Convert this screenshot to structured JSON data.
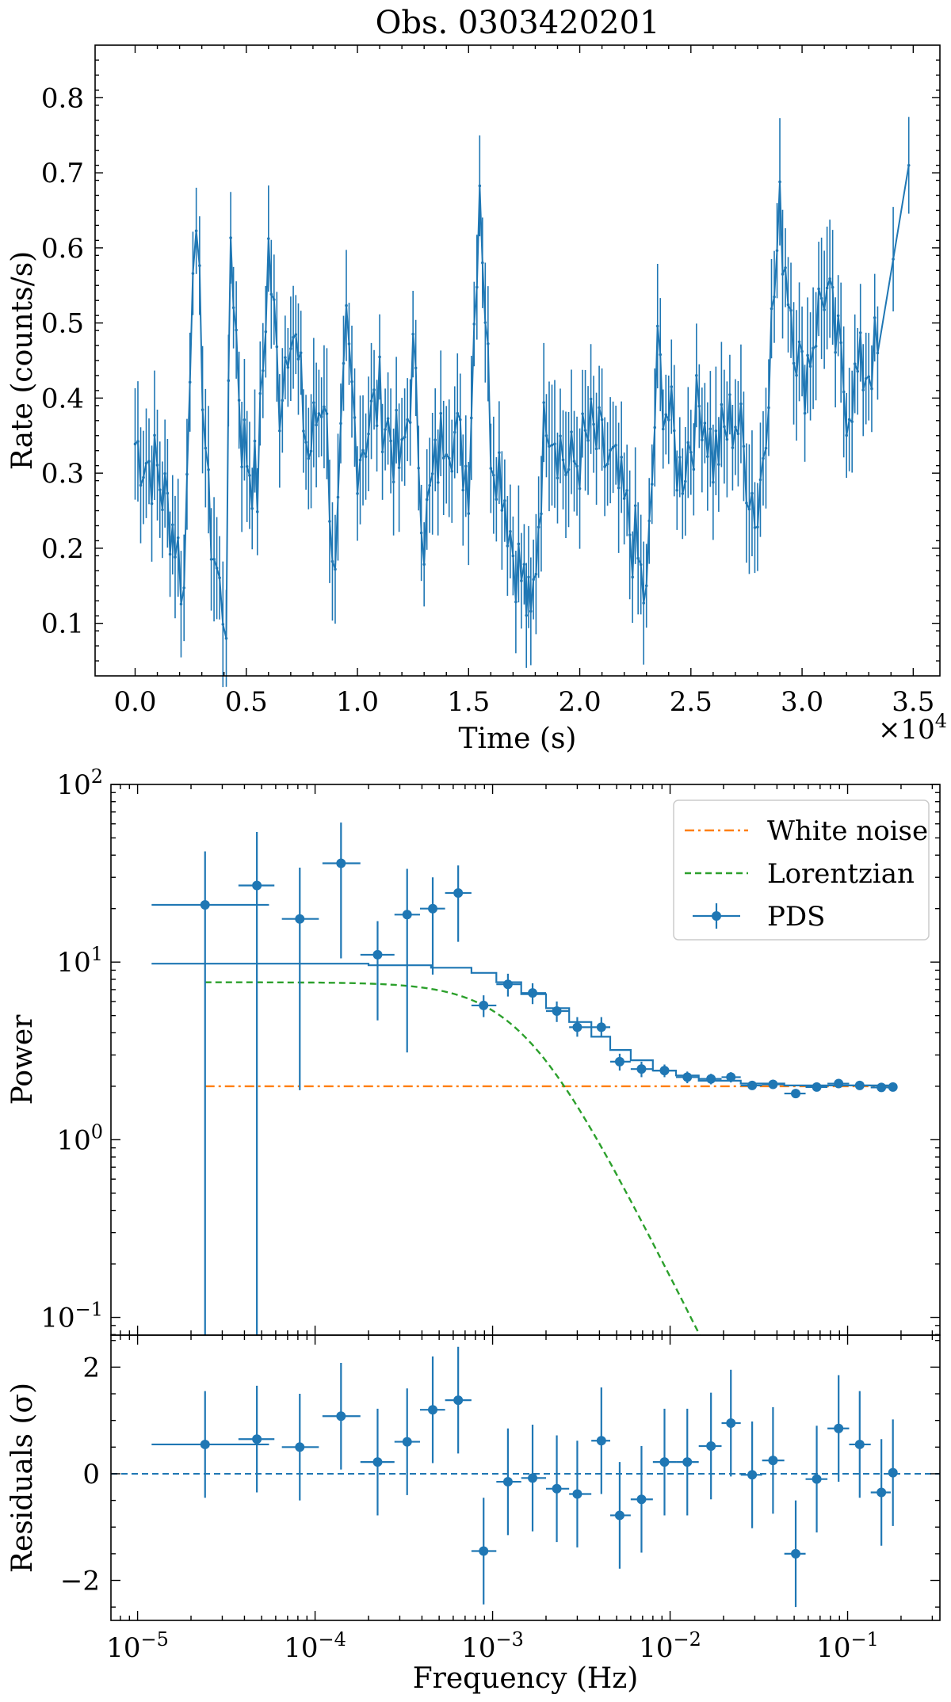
{
  "figure": {
    "colors": {
      "series": "#1f77b4",
      "white_noise": "#ff7f0e",
      "lorentzian": "#2ca02c",
      "axis": "#000000",
      "zero_line": "#1f77b4"
    }
  },
  "chart_data": [
    {
      "id": "lightcurve",
      "type": "line",
      "title": "Obs. 0303420201",
      "xlabel": "Time (s)",
      "ylabel": "Rate (counts/s)",
      "x_multiplier_label": "×10",
      "x_multiplier_exp": "4",
      "xlim": [
        -0.18,
        3.62
      ],
      "ylim": [
        0.03,
        0.87
      ],
      "xticks": [
        0.0,
        0.5,
        1.0,
        1.5,
        2.0,
        2.5,
        3.0,
        3.5
      ],
      "xtick_labels": [
        "0.0",
        "0.5",
        "1.0",
        "1.5",
        "2.0",
        "2.5",
        "3.0",
        "3.5"
      ],
      "yticks": [
        0.1,
        0.2,
        0.3,
        0.4,
        0.5,
        0.6,
        0.7,
        0.8
      ],
      "ytick_labels": [
        "0.1",
        "0.2",
        "0.3",
        "0.4",
        "0.5",
        "0.6",
        "0.7",
        "0.8"
      ],
      "x_unit_note": "time in units of 1e4 s",
      "key_points": [
        {
          "t": 0.0,
          "rate": 0.34
        },
        {
          "t": 0.1,
          "rate": 0.3
        },
        {
          "t": 0.18,
          "rate": 0.22
        },
        {
          "t": 0.22,
          "rate": 0.14
        },
        {
          "t": 0.26,
          "rate": 0.62
        },
        {
          "t": 0.29,
          "rate": 0.52
        },
        {
          "t": 0.33,
          "rate": 0.25
        },
        {
          "t": 0.38,
          "rate": 0.14
        },
        {
          "t": 0.41,
          "rate": 0.11
        },
        {
          "t": 0.43,
          "rate": 0.62
        },
        {
          "t": 0.48,
          "rate": 0.35
        },
        {
          "t": 0.55,
          "rate": 0.28
        },
        {
          "t": 0.6,
          "rate": 0.6
        },
        {
          "t": 0.65,
          "rate": 0.4
        },
        {
          "t": 0.7,
          "rate": 0.52
        },
        {
          "t": 0.78,
          "rate": 0.32
        },
        {
          "t": 0.85,
          "rate": 0.42
        },
        {
          "t": 0.9,
          "rate": 0.14
        },
        {
          "t": 0.95,
          "rate": 0.48
        },
        {
          "t": 1.0,
          "rate": 0.33
        },
        {
          "t": 1.1,
          "rate": 0.4
        },
        {
          "t": 1.2,
          "rate": 0.3
        },
        {
          "t": 1.25,
          "rate": 0.45
        },
        {
          "t": 1.3,
          "rate": 0.22
        },
        {
          "t": 1.4,
          "rate": 0.38
        },
        {
          "t": 1.5,
          "rate": 0.3
        },
        {
          "t": 1.55,
          "rate": 0.7
        },
        {
          "t": 1.6,
          "rate": 0.35
        },
        {
          "t": 1.65,
          "rate": 0.3
        },
        {
          "t": 1.7,
          "rate": 0.2
        },
        {
          "t": 1.75,
          "rate": 0.15
        },
        {
          "t": 1.78,
          "rate": 0.09
        },
        {
          "t": 1.85,
          "rate": 0.4
        },
        {
          "t": 1.95,
          "rate": 0.3
        },
        {
          "t": 2.05,
          "rate": 0.35
        },
        {
          "t": 2.15,
          "rate": 0.3
        },
        {
          "t": 2.25,
          "rate": 0.2
        },
        {
          "t": 2.3,
          "rate": 0.12
        },
        {
          "t": 2.35,
          "rate": 0.45
        },
        {
          "t": 2.45,
          "rate": 0.3
        },
        {
          "t": 2.55,
          "rate": 0.4
        },
        {
          "t": 2.6,
          "rate": 0.32
        },
        {
          "t": 2.7,
          "rate": 0.38
        },
        {
          "t": 2.8,
          "rate": 0.24
        },
        {
          "t": 2.9,
          "rate": 0.64
        },
        {
          "t": 3.0,
          "rate": 0.42
        },
        {
          "t": 3.1,
          "rate": 0.55
        },
        {
          "t": 3.2,
          "rate": 0.4
        },
        {
          "t": 3.3,
          "rate": 0.45
        },
        {
          "t": 3.34,
          "rate": 0.46
        },
        {
          "t": 3.48,
          "rate": 0.71
        }
      ],
      "error_bar_half_width": 0.07
    },
    {
      "id": "pds",
      "type": "scatter",
      "xlabel": "",
      "ylabel": "Power",
      "xscale": "log",
      "yscale": "log",
      "xlim_log10": [
        -5.15,
        -0.48
      ],
      "ylim_log10": [
        -1.1,
        2.0
      ],
      "ytick_labels": [
        {
          "base": "10",
          "exp": "−1",
          "value": -1
        },
        {
          "base": "10",
          "exp": "0",
          "value": 0
        },
        {
          "base": "10",
          "exp": "1",
          "value": 1
        },
        {
          "base": "10",
          "exp": "2",
          "value": 2
        }
      ],
      "legend": {
        "placement": "top-right",
        "entries": [
          {
            "label": "White noise",
            "style": "dashdot",
            "color": "#ff7f0e"
          },
          {
            "label": "Lorentzian",
            "style": "dashed",
            "color": "#2ca02c"
          },
          {
            "label": "PDS",
            "style": "errorbar",
            "color": "#1f77b4"
          }
        ]
      },
      "white_noise_level": 2.0,
      "lorentzian": {
        "amplitude": 7.7,
        "width_hz": 0.0015,
        "x_start_hz": 2.4e-05
      },
      "points": [
        {
          "f": 2.4e-05,
          "f_lo": 1.2e-05,
          "f_hi": 5.5e-05,
          "p": 21.0,
          "p_lo": 0.05,
          "p_hi": 42.0
        },
        {
          "f": 4.7e-05,
          "f_lo": 3.7e-05,
          "f_hi": 5.9e-05,
          "p": 27.0,
          "p_lo": 0.05,
          "p_hi": 54.0
        },
        {
          "f": 8.2e-05,
          "f_lo": 6.5e-05,
          "f_hi": 0.000105,
          "p": 17.5,
          "p_lo": 1.9,
          "p_hi": 34.0
        },
        {
          "f": 0.00014,
          "f_lo": 0.00011,
          "f_hi": 0.00018,
          "p": 36.0,
          "p_lo": 10.5,
          "p_hi": 61.0
        },
        {
          "f": 0.000225,
          "f_lo": 0.00018,
          "f_hi": 0.00028,
          "p": 11.0,
          "p_lo": 4.7,
          "p_hi": 17.0
        },
        {
          "f": 0.00033,
          "f_lo": 0.00028,
          "f_hi": 0.00039,
          "p": 18.5,
          "p_lo": 3.1,
          "p_hi": 33.5
        },
        {
          "f": 0.00046,
          "f_lo": 0.00039,
          "f_hi": 0.00054,
          "p": 20.0,
          "p_lo": 8.5,
          "p_hi": 30.0
        },
        {
          "f": 0.00064,
          "f_lo": 0.00054,
          "f_hi": 0.00076,
          "p": 24.5,
          "p_lo": 13.0,
          "p_hi": 35.0
        },
        {
          "f": 0.00089,
          "f_lo": 0.00076,
          "f_hi": 0.00105,
          "p": 5.7,
          "p_lo": 4.9,
          "p_hi": 6.5
        },
        {
          "f": 0.00122,
          "f_lo": 0.00105,
          "f_hi": 0.00145,
          "p": 7.5,
          "p_lo": 6.4,
          "p_hi": 8.6
        },
        {
          "f": 0.00168,
          "f_lo": 0.00145,
          "f_hi": 0.002,
          "p": 6.7,
          "p_lo": 5.8,
          "p_hi": 7.6
        },
        {
          "f": 0.0023,
          "f_lo": 0.002,
          "f_hi": 0.0027,
          "p": 5.3,
          "p_lo": 4.6,
          "p_hi": 6.0
        },
        {
          "f": 0.003,
          "f_lo": 0.0027,
          "f_hi": 0.0036,
          "p": 4.3,
          "p_lo": 3.8,
          "p_hi": 4.9
        },
        {
          "f": 0.0041,
          "f_lo": 0.0036,
          "f_hi": 0.0046,
          "p": 4.3,
          "p_lo": 3.8,
          "p_hi": 4.9
        },
        {
          "f": 0.0052,
          "f_lo": 0.0046,
          "f_hi": 0.006,
          "p": 2.75,
          "p_lo": 2.45,
          "p_hi": 3.05
        },
        {
          "f": 0.0069,
          "f_lo": 0.006,
          "f_hi": 0.008,
          "p": 2.5,
          "p_lo": 2.25,
          "p_hi": 2.75
        },
        {
          "f": 0.0093,
          "f_lo": 0.008,
          "f_hi": 0.0108,
          "p": 2.45,
          "p_lo": 2.25,
          "p_hi": 2.65
        },
        {
          "f": 0.0125,
          "f_lo": 0.0108,
          "f_hi": 0.0145,
          "p": 2.25,
          "p_lo": 2.08,
          "p_hi": 2.42
        },
        {
          "f": 0.017,
          "f_lo": 0.0145,
          "f_hi": 0.0195,
          "p": 2.2,
          "p_lo": 2.05,
          "p_hi": 2.35
        },
        {
          "f": 0.022,
          "f_lo": 0.0195,
          "f_hi": 0.025,
          "p": 2.25,
          "p_lo": 2.1,
          "p_hi": 2.4
        },
        {
          "f": 0.029,
          "f_lo": 0.025,
          "f_hi": 0.033,
          "p": 2.02,
          "p_lo": 1.92,
          "p_hi": 2.12
        },
        {
          "f": 0.038,
          "f_lo": 0.033,
          "f_hi": 0.044,
          "p": 2.05,
          "p_lo": 1.95,
          "p_hi": 2.15
        },
        {
          "f": 0.051,
          "f_lo": 0.044,
          "f_hi": 0.058,
          "p": 1.82,
          "p_lo": 1.74,
          "p_hi": 1.9
        },
        {
          "f": 0.067,
          "f_lo": 0.058,
          "f_hi": 0.077,
          "p": 1.98,
          "p_lo": 1.9,
          "p_hi": 2.06
        },
        {
          "f": 0.089,
          "f_lo": 0.077,
          "f_hi": 0.102,
          "p": 2.07,
          "p_lo": 2.0,
          "p_hi": 2.14
        },
        {
          "f": 0.117,
          "f_lo": 0.102,
          "f_hi": 0.135,
          "p": 2.02,
          "p_lo": 1.96,
          "p_hi": 2.08
        },
        {
          "f": 0.155,
          "f_lo": 0.135,
          "f_hi": 0.175,
          "p": 1.97,
          "p_lo": 1.91,
          "p_hi": 2.03
        },
        {
          "f": 0.18,
          "f_lo": 0.175,
          "f_hi": 0.185,
          "p": 1.98,
          "p_lo": 1.93,
          "p_hi": 2.03
        }
      ],
      "model_step_levels": [
        {
          "f_lo": 1.2e-05,
          "f_hi": 0.0002,
          "p": 9.8
        },
        {
          "f_lo": 0.0002,
          "f_hi": 0.00045,
          "p": 9.6
        },
        {
          "f_lo": 0.00045,
          "f_hi": 0.00076,
          "p": 9.3
        },
        {
          "f_lo": 0.00076,
          "f_hi": 0.00105,
          "p": 8.7
        },
        {
          "f_lo": 0.00105,
          "f_hi": 0.00145,
          "p": 7.7
        },
        {
          "f_lo": 0.00145,
          "f_hi": 0.002,
          "p": 6.6
        },
        {
          "f_lo": 0.002,
          "f_hi": 0.0027,
          "p": 5.5
        },
        {
          "f_lo": 0.0027,
          "f_hi": 0.0036,
          "p": 4.6
        },
        {
          "f_lo": 0.0036,
          "f_hi": 0.0046,
          "p": 3.8
        },
        {
          "f_lo": 0.0046,
          "f_hi": 0.006,
          "p": 3.2
        },
        {
          "f_lo": 0.006,
          "f_hi": 0.008,
          "p": 2.8
        },
        {
          "f_lo": 0.008,
          "f_hi": 0.0108,
          "p": 2.45
        },
        {
          "f_lo": 0.0108,
          "f_hi": 0.0145,
          "p": 2.3
        },
        {
          "f_lo": 0.0145,
          "f_hi": 0.025,
          "p": 2.15
        },
        {
          "f_lo": 0.025,
          "f_hi": 0.044,
          "p": 2.07
        },
        {
          "f_lo": 0.044,
          "f_hi": 0.185,
          "p": 2.02
        }
      ]
    },
    {
      "id": "residuals",
      "type": "scatter",
      "xlabel": "Frequency (Hz)",
      "ylabel": "Residuals (σ)",
      "xscale": "log",
      "xlim_log10": [
        -5.15,
        -0.48
      ],
      "ylim": [
        -2.75,
        2.6
      ],
      "yticks": [
        -2,
        0,
        2
      ],
      "ytick_labels": [
        "−2",
        "0",
        "2"
      ],
      "xtick_labels": [
        {
          "base": "10",
          "exp": "−5",
          "value": -5
        },
        {
          "base": "10",
          "exp": "−4",
          "value": -4
        },
        {
          "base": "10",
          "exp": "−3",
          "value": -3
        },
        {
          "base": "10",
          "exp": "−2",
          "value": -2
        },
        {
          "base": "10",
          "exp": "−1",
          "value": -1
        }
      ],
      "zero_line": 0,
      "points": [
        {
          "f": 2.4e-05,
          "f_lo": 1.2e-05,
          "f_hi": 5.5e-05,
          "r": 0.55
        },
        {
          "f": 4.7e-05,
          "f_lo": 3.7e-05,
          "f_hi": 5.9e-05,
          "r": 0.65
        },
        {
          "f": 8.2e-05,
          "f_lo": 6.5e-05,
          "f_hi": 0.000105,
          "r": 0.5
        },
        {
          "f": 0.00014,
          "f_lo": 0.00011,
          "f_hi": 0.00018,
          "r": 1.08
        },
        {
          "f": 0.000225,
          "f_lo": 0.00018,
          "f_hi": 0.00028,
          "r": 0.22
        },
        {
          "f": 0.00033,
          "f_lo": 0.00028,
          "f_hi": 0.00039,
          "r": 0.6
        },
        {
          "f": 0.00046,
          "f_lo": 0.00039,
          "f_hi": 0.00054,
          "r": 1.2
        },
        {
          "f": 0.00064,
          "f_lo": 0.00054,
          "f_hi": 0.00076,
          "r": 1.38
        },
        {
          "f": 0.00089,
          "f_lo": 0.00076,
          "f_hi": 0.00105,
          "r": -1.45
        },
        {
          "f": 0.00122,
          "f_lo": 0.00105,
          "f_hi": 0.00145,
          "r": -0.15
        },
        {
          "f": 0.00168,
          "f_lo": 0.00145,
          "f_hi": 0.002,
          "r": -0.08
        },
        {
          "f": 0.0023,
          "f_lo": 0.002,
          "f_hi": 0.0027,
          "r": -0.28
        },
        {
          "f": 0.003,
          "f_lo": 0.0027,
          "f_hi": 0.0036,
          "r": -0.38
        },
        {
          "f": 0.0041,
          "f_lo": 0.0036,
          "f_hi": 0.0046,
          "r": 0.62
        },
        {
          "f": 0.0052,
          "f_lo": 0.0046,
          "f_hi": 0.006,
          "r": -0.78
        },
        {
          "f": 0.0069,
          "f_lo": 0.006,
          "f_hi": 0.008,
          "r": -0.48
        },
        {
          "f": 0.0093,
          "f_lo": 0.008,
          "f_hi": 0.0108,
          "r": 0.22
        },
        {
          "f": 0.0125,
          "f_lo": 0.0108,
          "f_hi": 0.0145,
          "r": 0.22
        },
        {
          "f": 0.017,
          "f_lo": 0.0145,
          "f_hi": 0.0195,
          "r": 0.52
        },
        {
          "f": 0.022,
          "f_lo": 0.0195,
          "f_hi": 0.025,
          "r": 0.95
        },
        {
          "f": 0.029,
          "f_lo": 0.025,
          "f_hi": 0.033,
          "r": -0.02
        },
        {
          "f": 0.038,
          "f_lo": 0.033,
          "f_hi": 0.044,
          "r": 0.25
        },
        {
          "f": 0.051,
          "f_lo": 0.044,
          "f_hi": 0.058,
          "r": -1.5
        },
        {
          "f": 0.067,
          "f_lo": 0.058,
          "f_hi": 0.077,
          "r": -0.1
        },
        {
          "f": 0.089,
          "f_lo": 0.077,
          "f_hi": 0.102,
          "r": 0.85
        },
        {
          "f": 0.117,
          "f_lo": 0.102,
          "f_hi": 0.135,
          "r": 0.55
        },
        {
          "f": 0.155,
          "f_lo": 0.135,
          "f_hi": 0.175,
          "r": -0.35
        },
        {
          "f": 0.18,
          "f_lo": 0.175,
          "f_hi": 0.185,
          "r": 0.02
        }
      ],
      "error_bar_half_width": 1.0
    }
  ]
}
